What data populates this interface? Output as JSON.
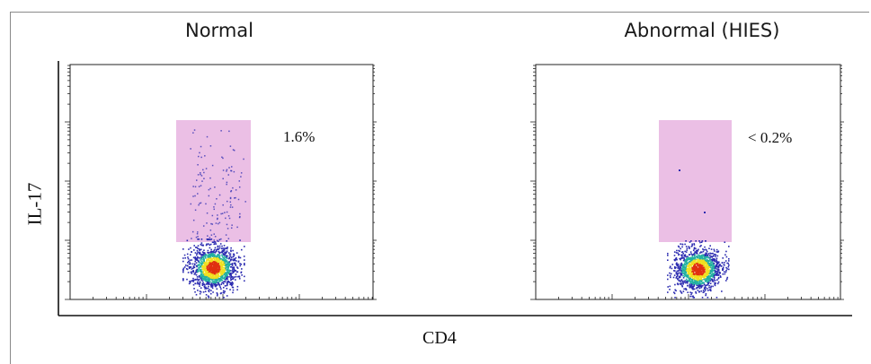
{
  "chart_data": [
    {
      "type": "scatter",
      "title": "Normal",
      "xlabel": "CD4",
      "ylabel": "IL-17",
      "x_scale": "log",
      "y_scale": "log",
      "gate": {
        "label": "1.6%",
        "color": "#e8b4e0"
      },
      "population": "dense CD4+ cluster at low IL-17 with a scattered IL-17+ tail inside the gate"
    },
    {
      "type": "scatter",
      "title": "Abnormal (HIES)",
      "xlabel": "CD4",
      "ylabel": "IL-17",
      "x_scale": "log",
      "y_scale": "log",
      "gate": {
        "label": "< 0.2%",
        "color": "#e8b4e0"
      },
      "population": "dense CD4+ cluster at low IL-17, almost no events inside the gate"
    }
  ],
  "colors": {
    "gate_fill": "#e8b4e0",
    "density_low": "#2b2bb0",
    "density_mid": "#22b0a0",
    "density_high": "#f0e020",
    "density_peak": "#e03010"
  }
}
